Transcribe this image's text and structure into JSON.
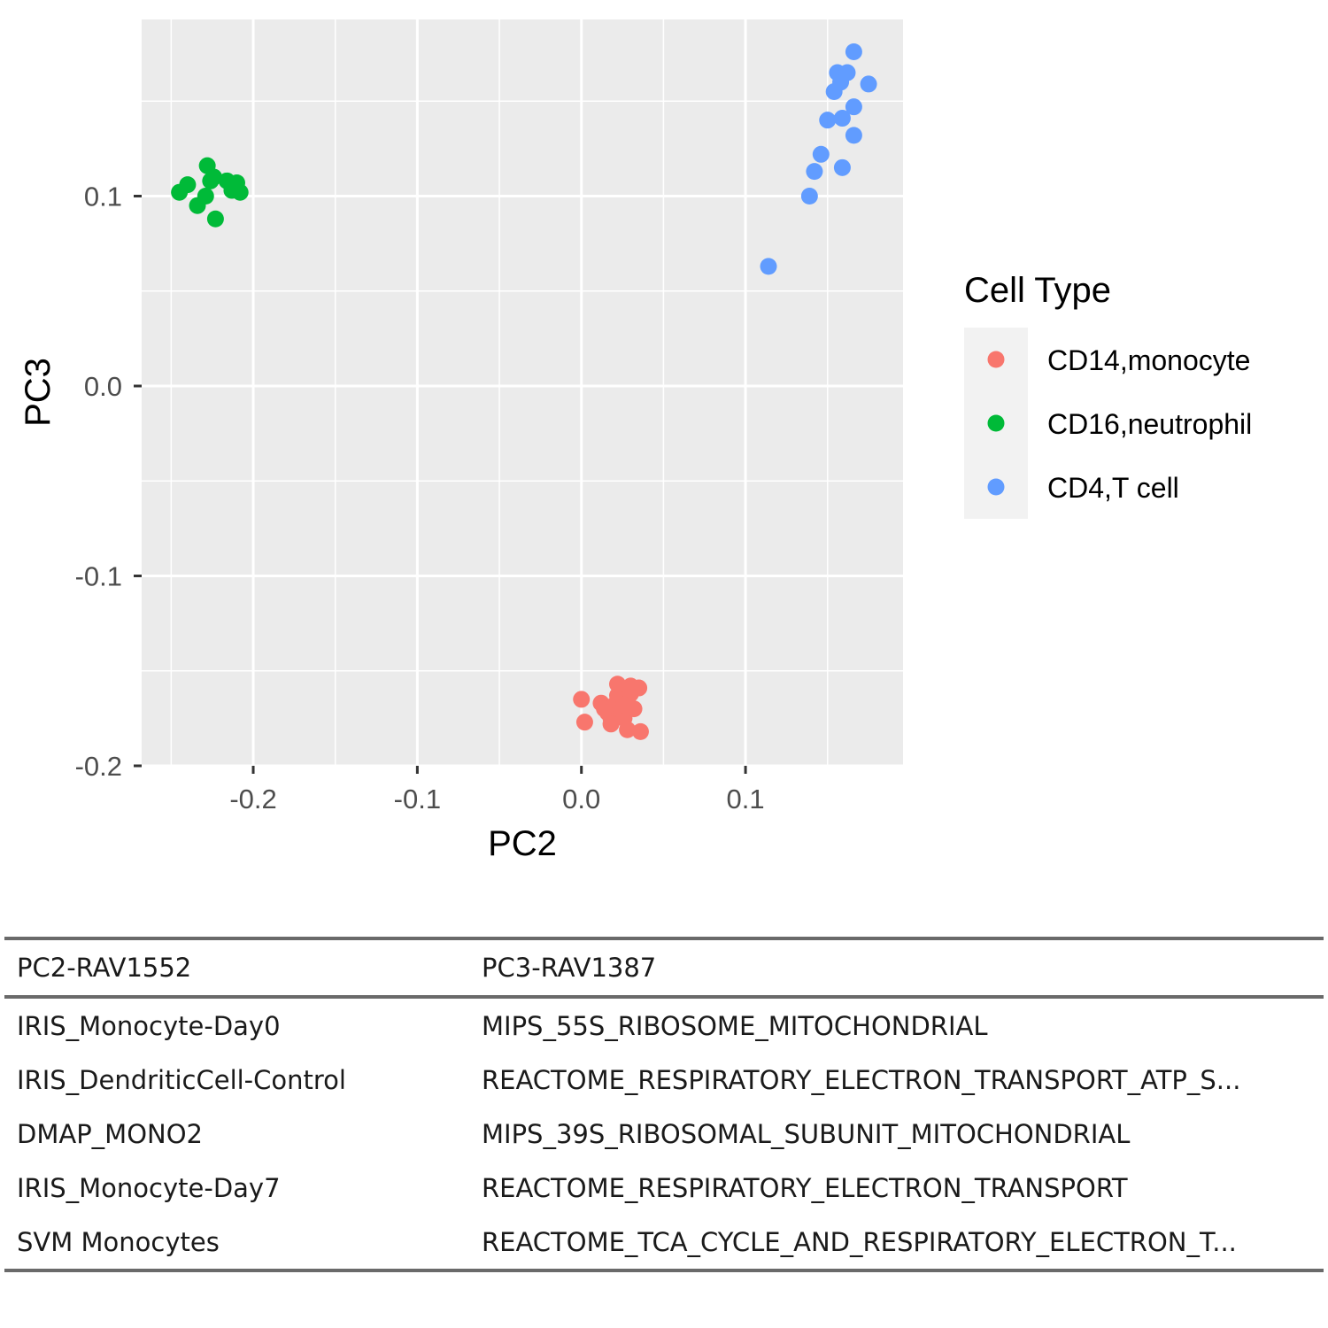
{
  "chart_data": {
    "type": "scatter",
    "xlabel": "PC2",
    "ylabel": "PC3",
    "xlim": [
      -0.268,
      0.196
    ],
    "ylim": [
      -0.2,
      0.193
    ],
    "x_ticks": [
      -0.2,
      -0.1,
      0.0,
      0.1
    ],
    "x_tick_labels": [
      "-0.2",
      "-0.1",
      "0.0",
      "0.1"
    ],
    "y_ticks": [
      -0.2,
      -0.1,
      0.0,
      0.1
    ],
    "y_tick_labels": [
      "-0.2",
      "-0.1",
      "0.0",
      "0.1"
    ],
    "grid": true,
    "legend": {
      "title": "Cell Type",
      "position": "right"
    },
    "series": [
      {
        "name": "CD14,monocyte",
        "color": "#F8766D",
        "points": [
          [
            0.0,
            -0.165
          ],
          [
            0.002,
            -0.177
          ],
          [
            0.012,
            -0.167
          ],
          [
            0.014,
            -0.17
          ],
          [
            0.016,
            -0.172
          ],
          [
            0.018,
            -0.175
          ],
          [
            0.02,
            -0.168
          ],
          [
            0.022,
            -0.163
          ],
          [
            0.022,
            -0.157
          ],
          [
            0.024,
            -0.17
          ],
          [
            0.026,
            -0.175
          ],
          [
            0.028,
            -0.165
          ],
          [
            0.028,
            -0.181
          ],
          [
            0.03,
            -0.162
          ],
          [
            0.03,
            -0.158
          ],
          [
            0.032,
            -0.17
          ],
          [
            0.035,
            -0.159
          ],
          [
            0.036,
            -0.182
          ],
          [
            0.018,
            -0.178
          ],
          [
            0.026,
            -0.168
          ]
        ]
      },
      {
        "name": "CD16,neutrophil",
        "color": "#00BA38",
        "points": [
          [
            -0.245,
            0.102
          ],
          [
            -0.24,
            0.106
          ],
          [
            -0.234,
            0.095
          ],
          [
            -0.229,
            0.1
          ],
          [
            -0.228,
            0.116
          ],
          [
            -0.226,
            0.108
          ],
          [
            -0.223,
            0.088
          ],
          [
            -0.216,
            0.108
          ],
          [
            -0.213,
            0.103
          ],
          [
            -0.21,
            0.107
          ],
          [
            -0.208,
            0.102
          ],
          [
            -0.224,
            0.11
          ]
        ]
      },
      {
        "name": "CD4,T cell",
        "color": "#619CFF",
        "points": [
          [
            0.114,
            0.063
          ],
          [
            0.139,
            0.1
          ],
          [
            0.142,
            0.113
          ],
          [
            0.146,
            0.122
          ],
          [
            0.15,
            0.14
          ],
          [
            0.154,
            0.155
          ],
          [
            0.156,
            0.165
          ],
          [
            0.158,
            0.16
          ],
          [
            0.159,
            0.141
          ],
          [
            0.159,
            0.115
          ],
          [
            0.162,
            0.165
          ],
          [
            0.166,
            0.176
          ],
          [
            0.166,
            0.147
          ],
          [
            0.166,
            0.132
          ],
          [
            0.175,
            0.159
          ]
        ]
      }
    ]
  },
  "table": {
    "headers": [
      "PC2-RAV1552",
      "PC3-RAV1387"
    ],
    "rows": [
      [
        "IRIS_Monocyte-Day0",
        "MIPS_55S_RIBOSOME_MITOCHONDRIAL"
      ],
      [
        "IRIS_DendriticCell-Control",
        "REACTOME_RESPIRATORY_ELECTRON_TRANSPORT_ATP_S..."
      ],
      [
        "DMAP_MONO2",
        "MIPS_39S_RIBOSOMAL_SUBUNIT_MITOCHONDRIAL"
      ],
      [
        "IRIS_Monocyte-Day7",
        "REACTOME_RESPIRATORY_ELECTRON_TRANSPORT"
      ],
      [
        "SVM Monocytes",
        "REACTOME_TCA_CYCLE_AND_RESPIRATORY_ELECTRON_T..."
      ]
    ]
  }
}
